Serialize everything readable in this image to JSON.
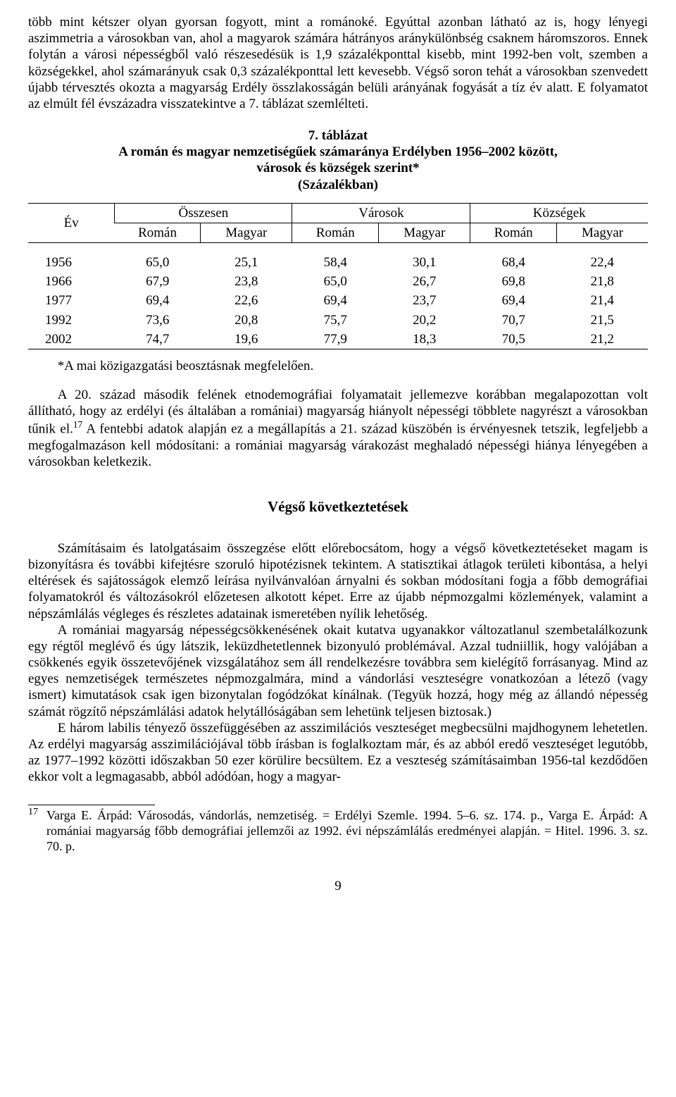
{
  "paragraphs": {
    "p1": "több mint kétszer olyan gyorsan fogyott, mint a románoké. Egyúttal azonban látható az is, hogy lényegi aszimmetria a városokban van, ahol a magyarok számára hátrányos aránykülönbség csaknem háromszoros. Ennek folytán a városi népességből való részesedésük is 1,9 százalékponttal kisebb, mint 1992-ben volt, szemben a községekkel, ahol számarányuk csak 0,3 százalékponttal lett kevesebb. Végső soron tehát a városokban szenvedett újabb térvesztés okozta a magyarság Erdély összlakosságán belüli arányának fogyását a tíz év alatt. E folyamatot az elmúlt fél évszázadra visszatekintve a 7. táblázat szemlélteti."
  },
  "table": {
    "title_line1": "7. táblázat",
    "title_line2": "A román és magyar nemzetiségűek számaránya Erdélyben 1956–2002 között,",
    "title_line3": "városok és községek szerint*",
    "title_line4": "(Százalékban)",
    "head_year": "Év",
    "groups": [
      "Összesen",
      "Városok",
      "Községek"
    ],
    "subheads": [
      "Román",
      "Magyar",
      "Román",
      "Magyar",
      "Román",
      "Magyar"
    ],
    "rows": [
      {
        "year": "1956",
        "vals": [
          "65,0",
          "25,1",
          "58,4",
          "30,1",
          "68,4",
          "22,4"
        ]
      },
      {
        "year": "1966",
        "vals": [
          "67,9",
          "23,8",
          "65,0",
          "26,7",
          "69,8",
          "21,8"
        ]
      },
      {
        "year": "1977",
        "vals": [
          "69,4",
          "22,6",
          "69,4",
          "23,7",
          "69,4",
          "21,4"
        ]
      },
      {
        "year": "1992",
        "vals": [
          "73,6",
          "20,8",
          "75,7",
          "20,2",
          "70,7",
          "21,5"
        ]
      },
      {
        "year": "2002",
        "vals": [
          "74,7",
          "19,6",
          "77,9",
          "18,3",
          "70,5",
          "21,2"
        ]
      }
    ],
    "note": "*A mai közigazgatási beosztásnak megfelelően."
  },
  "paragraphs2": {
    "p2a": "A 20. század második felének etnodemográfiai folyamatait jellemezve korábban megalapozottan volt állítható, hogy az erdélyi (és általában a romániai) magyarság hiányolt népességi többlete nagyrészt a városokban tűnik el.",
    "p2b": " A fentebbi adatok alapján ez a megállapítás a 21. század küszöbén is érvényesnek tetszik, legfeljebb a megfogalmazáson kell módosítani: a romániai magyarság várakozást meghaladó népességi hiánya lényegében a városokban keletkezik.",
    "fn_ref": "17"
  },
  "section_title": "Végső következtetések",
  "paragraphs3": {
    "p3": "Számításaim és latolgatásaim összegzése előtt előrebocsátom, hogy a végső következtetéseket magam is bizonyításra és további kifejtésre szoruló hipotézisnek tekintem. A statisztikai átlagok területi kibontása, a helyi eltérések és sajátosságok elemző leírása nyilvánvalóan árnyalni és sokban módosítani fogja a főbb demográfiai folyamatokról és változásokról előzetesen alkotott képet. Erre az újabb népmozgalmi közlemények, valamint a népszámlálás végleges és részletes adatainak ismeretében nyílik lehetőség.",
    "p4": "A romániai magyarság népességcsökkenésének okait kutatva ugyanakkor változatlanul szembetalálkozunk egy régtől meglévő és úgy látszik, leküzdhetetlennek bizonyuló problémával. Azzal tudniillik, hogy valójában a csökkenés egyik összetevőjének vizsgálatához sem áll rendelkezésre továbbra sem kielégítő forrásanyag. Mind az egyes nemzetiségek természetes népmozgalmára, mind a vándorlási veszteségre vonatkozóan a létező (vagy ismert) kimutatások csak igen bizonytalan fogódzókat kínálnak. (Tegyük hozzá, hogy még az állandó népesség számát rögzítő népszámlálási adatok helytállóságában sem lehetünk teljesen biztosak.)",
    "p5": "E három labilis tényező összefüggésében az asszimilációs veszteséget megbecsülni majdhogynem lehetetlen. Az erdélyi magyarság asszimilációjával több írásban is foglalkoztam már, és az abból eredő veszteséget legutóbb, az 1977–1992 közötti időszakban 50 ezer körülire becsültem. Ez a veszteség számításaimban 1956-tal kezdődően ekkor volt a legmagasabb, abból adódóan, hogy a magyar-"
  },
  "footnote": {
    "num": "17",
    "text": "Varga E. Árpád: Városodás, vándorlás, nemzetiség. = Erdélyi Szemle. 1994. 5–6. sz. 174. p., Varga E. Árpád: A romániai magyarság főbb demográfiai jellemzői az 1992. évi népszámlálás eredményei alapján. = Hitel. 1996. 3. sz. 70. p."
  },
  "page_number": "9"
}
